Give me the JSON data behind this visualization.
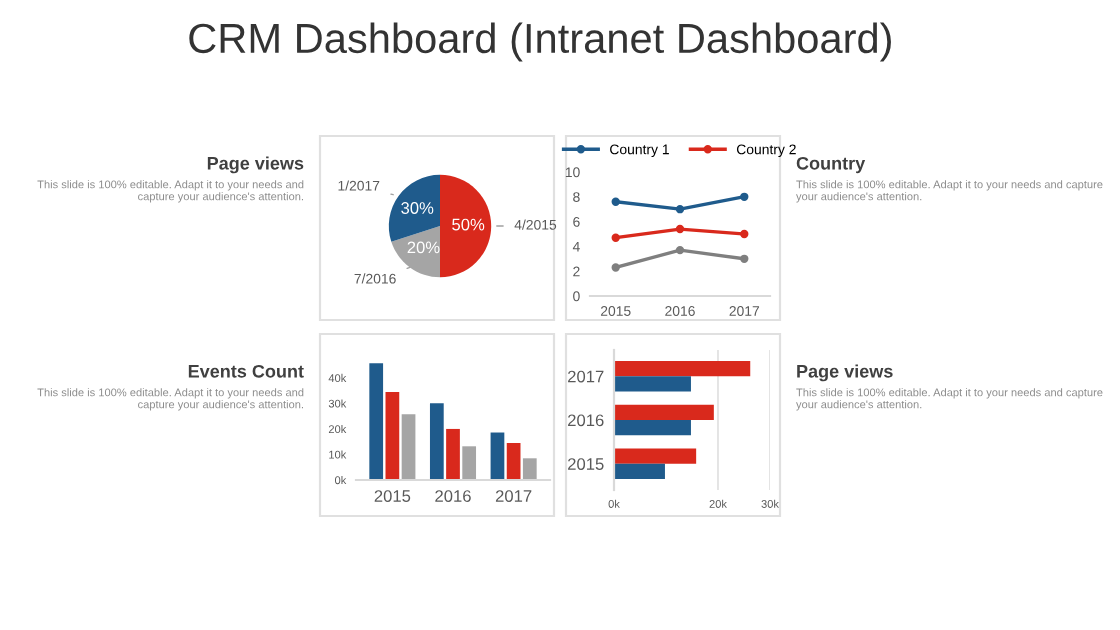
{
  "chart_data": [
    {
      "type": "other",
      "title": "CRM Dashboard (Intranet Dashboard)"
    },
    {
      "type": "other",
      "title": "Page views",
      "annotations": [
        "This slide is 100% editable. Adapt it to your needs and capture your audience's attention."
      ]
    },
    {
      "type": "pie",
      "categories": [
        "4/2015",
        "7/2016",
        "1/2017"
      ],
      "values": [
        50,
        20,
        30
      ],
      "colors": [
        "#d9291c",
        "#a5a5a5",
        "#1f5b8c"
      ],
      "value_labels": [
        "50%",
        "20%",
        "30%"
      ]
    },
    {
      "type": "line",
      "categories": [
        "2015",
        "2016",
        "2017"
      ],
      "series": [
        {
          "name": "Country 1",
          "color": "#1f5b8c",
          "values": [
            7.6,
            7.0,
            8.0
          ]
        },
        {
          "name": "Country 2",
          "color": "#d9291c",
          "values": [
            4.7,
            5.4,
            5.0
          ]
        },
        {
          "color": "#7f7f7f",
          "values": [
            2.3,
            3.7,
            3.0
          ]
        }
      ],
      "ylim": [
        0,
        10
      ],
      "yticks": [
        0,
        2,
        4,
        6,
        8,
        10
      ],
      "marker": "circle",
      "legend": "top",
      "grid": false
    },
    {
      "type": "other",
      "title": "Country",
      "annotations": [
        "This slide is 100% editable. Adapt it to your needs and capture your audience's attention."
      ]
    },
    {
      "type": "other",
      "title": "Events Count",
      "annotations": [
        "This slide is 100% editable. Adapt it to your needs and capture your audience's attention."
      ]
    },
    {
      "type": "bar",
      "categories": [
        "2015",
        "2016",
        "2017"
      ],
      "series": [
        {
          "color": "#1f5b8c",
          "values": [
            45700,
            30100,
            18600
          ]
        },
        {
          "color": "#d9291c",
          "values": [
            34500,
            20000,
            14500
          ]
        },
        {
          "color": "#a5a5a5",
          "values": [
            25800,
            13200,
            8500
          ]
        }
      ],
      "ylim": [
        0,
        47000
      ],
      "yticks": [
        {
          "value": 0,
          "label": "0k"
        },
        {
          "value": 10000,
          "label": "10k"
        },
        {
          "value": 20000,
          "label": "20k"
        },
        {
          "value": 30000,
          "label": "30k"
        },
        {
          "value": 40000,
          "label": "40k"
        }
      ],
      "grid": false
    },
    {
      "type": "bar",
      "orientation": "horizontal",
      "categories": [
        "2017",
        "2016",
        "2015"
      ],
      "series": [
        {
          "color": "#d9291c",
          "values": [
            26200,
            19200,
            15800
          ]
        },
        {
          "color": "#1f5b8c",
          "values": [
            14800,
            14800,
            9800
          ]
        }
      ],
      "xlim": [
        0,
        30000
      ],
      "xticks": [
        {
          "value": 0,
          "label": "0k"
        },
        {
          "value": 20000,
          "label": "20k"
        },
        {
          "value": 30000,
          "label": "30k"
        }
      ],
      "grid": "x"
    },
    {
      "type": "other",
      "title": "Page views",
      "annotations": [
        "This slide is 100% editable. Adapt it to your needs and capture your audience's attention."
      ]
    }
  ]
}
